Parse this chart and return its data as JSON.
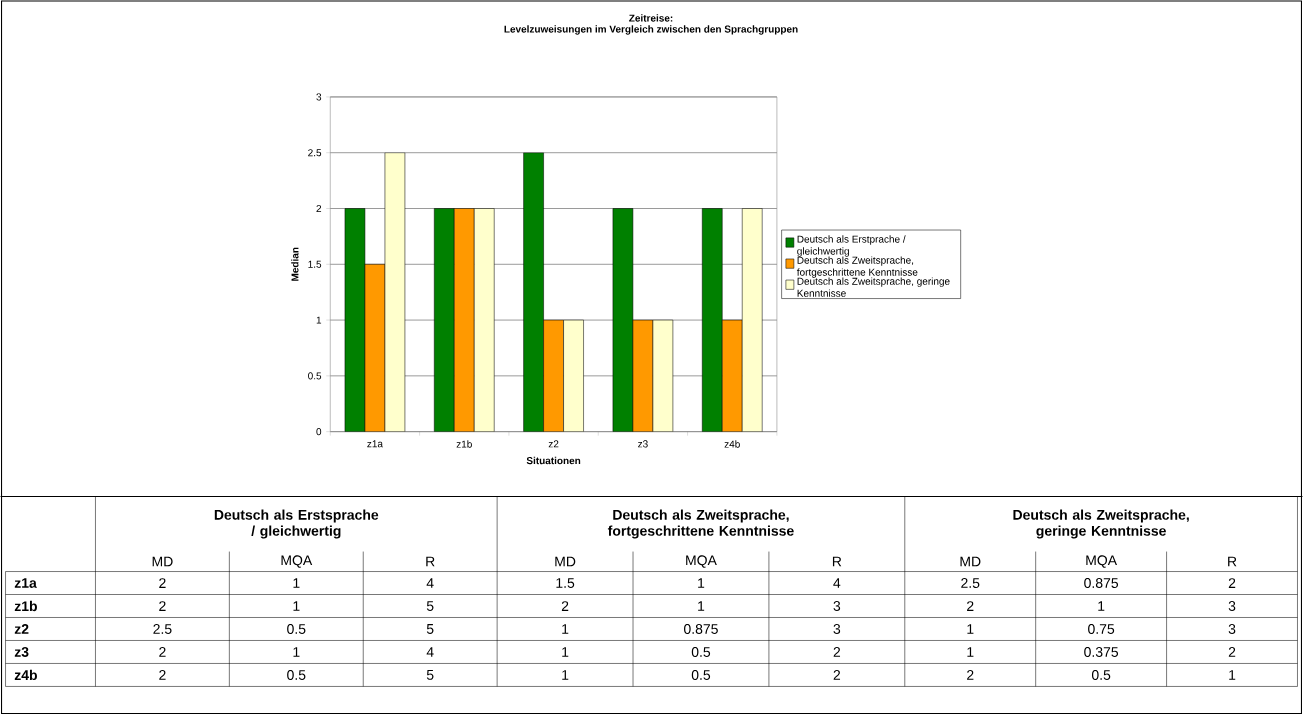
{
  "chart_data": [
    {
      "type": "bar",
      "title": "Zeitreise:",
      "subtitle": "Levelzuweisungen im Vergleich zwischen den Sprachgruppen",
      "xlabel": "Situationen",
      "ylabel": "Median",
      "categories": [
        "z1a",
        "z1b",
        "z2",
        "z3",
        "z4b"
      ],
      "series": [
        {
          "name": "Deutsch als Erstprache / gleichwertig",
          "color": "#008000",
          "values": [
            2,
            2,
            2.5,
            2,
            2
          ]
        },
        {
          "name": "Deutsch als Zweitsprache, fortgeschrittene Kenntnisse",
          "color": "#ff9900",
          "values": [
            1.5,
            2,
            1,
            1,
            1
          ]
        },
        {
          "name": "Deutsch als Zweitsprache, geringe Kenntnisse",
          "color": "#ffffcc",
          "values": [
            2.5,
            2,
            1,
            1,
            2
          ]
        }
      ],
      "ylim": [
        0,
        3
      ],
      "yticks": [
        0,
        0.5,
        1,
        1.5,
        2,
        2.5,
        3
      ],
      "grid": "y",
      "legend": "right"
    },
    {
      "type": "other",
      "annotations": [
        "Deutsch als Erstsprache / gleichwertig",
        "Deutsch als Zweitsprache, fortgeschrittene Kenntnisse",
        "Deutsch als Zweitsprache, geringe Kenntnisse",
        "MD",
        "MQA",
        "R",
        "MD",
        "MQA",
        "R",
        "MD",
        "MQA",
        "R",
        "z1a",
        "2",
        "1",
        "4",
        "1.5",
        "1",
        "4",
        "2.5",
        "0.875",
        "2",
        "z1b",
        "2",
        "1",
        "5",
        "2",
        "1",
        "3",
        "2",
        "1",
        "3",
        "z2",
        "2.5",
        "0.5",
        "5",
        "1",
        "0.875",
        "3",
        "1",
        "0.75",
        "3",
        "z3",
        "2",
        "1",
        "4",
        "1",
        "0.5",
        "2",
        "1",
        "0.375",
        "2",
        "z4b",
        "2",
        "0.5",
        "5",
        "1",
        "0.5",
        "2",
        "2",
        "0.5",
        "1"
      ]
    }
  ]
}
